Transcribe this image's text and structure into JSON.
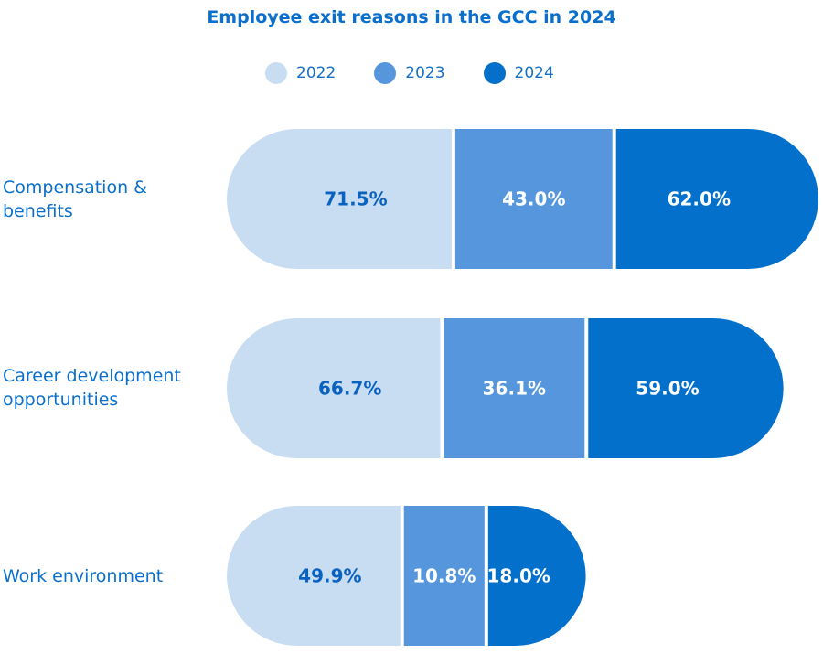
{
  "chart_data": {
    "type": "bar",
    "stacked": true,
    "title": "Employee exit reasons in the GCC in 2024",
    "categories": [
      "Compensation & benefits",
      "Career development opportunities",
      "Work environment"
    ],
    "series": [
      {
        "name": "2022",
        "values": [
          71.5,
          66.7,
          49.9
        ],
        "labels": [
          "71.5%",
          "66.7%",
          "49.9%"
        ],
        "color": "#c8dcf2",
        "text_color": "#0a62c0"
      },
      {
        "name": "2023",
        "values": [
          43.0,
          36.1,
          10.8
        ],
        "labels": [
          "43.0%",
          "36.1%",
          "10.8%"
        ],
        "color": "#5596dc",
        "text_color": "#ffffff"
      },
      {
        "name": "2024",
        "values": [
          62.0,
          59.0,
          18.0
        ],
        "labels": [
          "62.0%",
          "59.0%",
          "18.0%"
        ],
        "color": "#0370cc",
        "text_color": "#ffffff"
      }
    ],
    "legend": "top",
    "grid": false
  }
}
